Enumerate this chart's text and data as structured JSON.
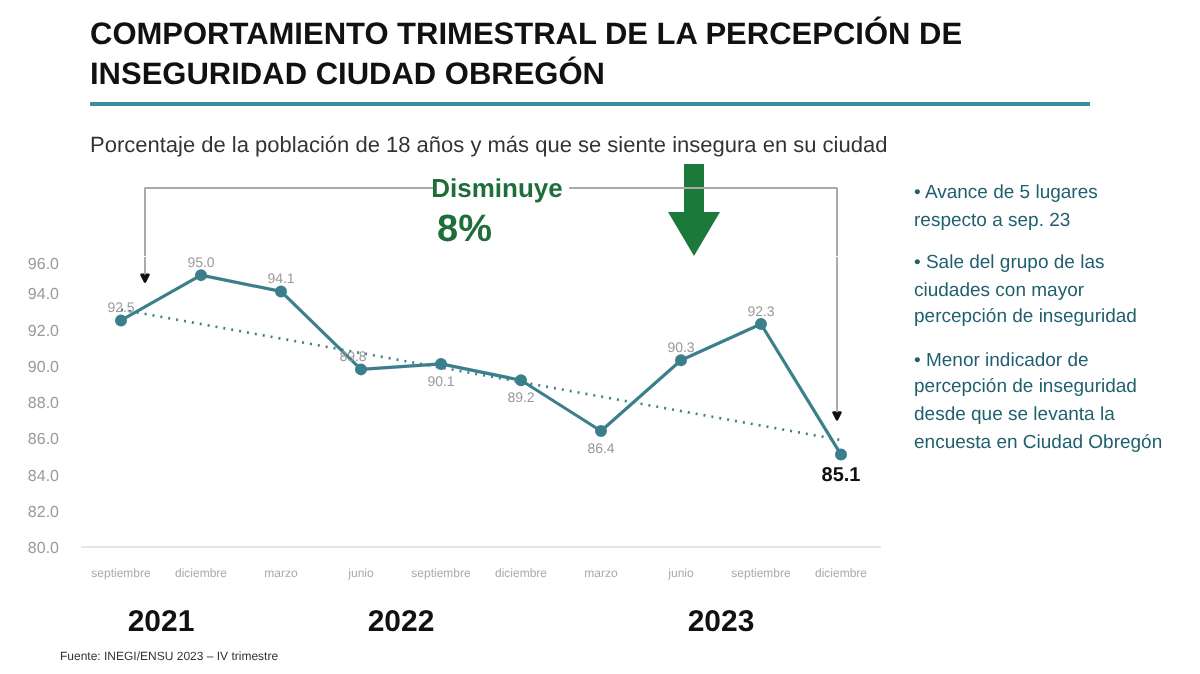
{
  "chart_data": {
    "type": "line",
    "title": "COMPORTAMIENTO TRIMESTRAL DE LA PERCEPCIÓN DE INSEGURIDAD CIUDAD OBREGÓN",
    "subtitle": "Porcentaje de la población de 18 años y más que se siente insegura en su ciudad",
    "categories": [
      "septiembre",
      "diciembre",
      "marzo",
      "junio",
      "septiembre",
      "diciembre",
      "marzo",
      "junio",
      "septiembre",
      "diciembre"
    ],
    "series": [
      {
        "color": "#3b7f8c",
        "values": [
          92.5,
          95.0,
          94.1,
          89.8,
          90.1,
          89.2,
          86.4,
          90.3,
          92.3,
          85.1
        ],
        "value_labels": [
          "92.5",
          "95.0",
          "94.1",
          "89.8",
          "90.1",
          "89.2",
          "86.4",
          "90.3",
          "92.3",
          "85.1"
        ]
      },
      {
        "type": "line",
        "color": "#3b7f8c",
        "line_style": "dotted",
        "marker": "none",
        "values": [
          93.1,
          92.3,
          91.5,
          90.7,
          89.9,
          89.1,
          88.3,
          87.5,
          86.7,
          85.9
        ]
      }
    ],
    "ylim": [
      80,
      96
    ],
    "yticks": [
      {
        "value": 80,
        "label": "80.0"
      },
      {
        "value": 82,
        "label": "82.0"
      },
      {
        "value": 84,
        "label": "84.0"
      },
      {
        "value": 86,
        "label": "86.0"
      },
      {
        "value": 88,
        "label": "88.0"
      },
      {
        "value": 90,
        "label": "90.0"
      },
      {
        "value": 92,
        "label": "92.0"
      },
      {
        "value": 94,
        "label": "94.0"
      },
      {
        "value": 96,
        "label": "96.0"
      }
    ],
    "marker": "circle",
    "grid": false,
    "annotations": [
      "Disminuye",
      "8%",
      "• Avance de 5 lugares respecto a sep. 23",
      "• Sale del grupo de las ciudades con mayor percepción de inseguridad",
      "• Menor indicador de percepción de inseguridad desde que se levanta la encuesta en Ciudad Obregón",
      "2021",
      "2022",
      "2023",
      "Fuente: INEGI/ENSU 2023 – IV trimestre"
    ]
  }
}
